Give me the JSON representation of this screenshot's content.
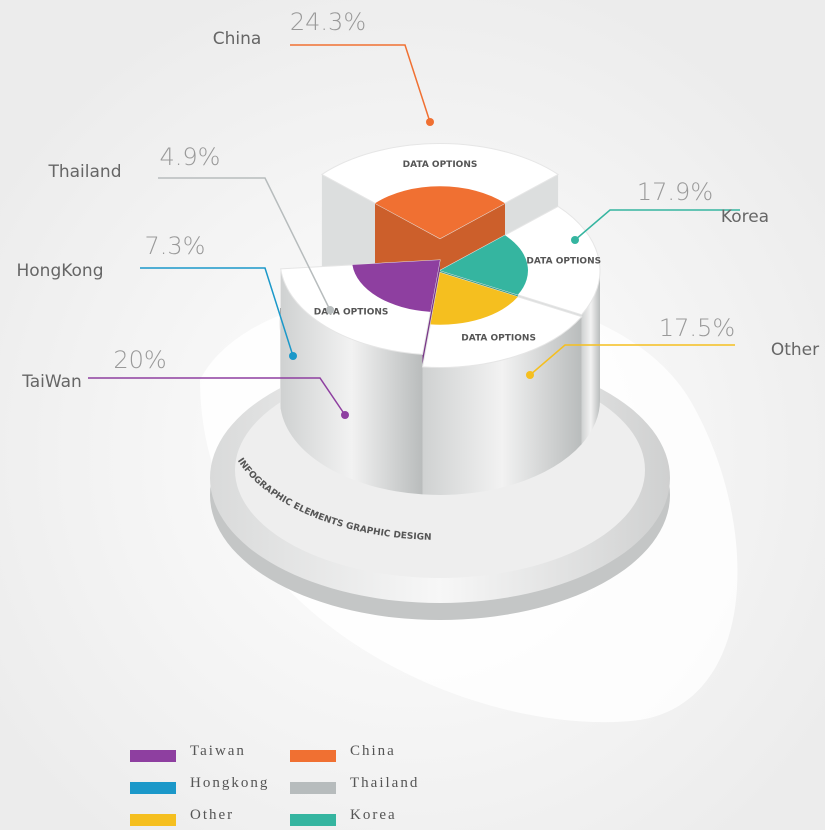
{
  "chart_data": {
    "type": "pie",
    "categories": [
      "China",
      "Korea",
      "Other",
      "TaiWan",
      "HongKong",
      "Thailand"
    ],
    "values": [
      24.3,
      17.9,
      17.5,
      20,
      7.3,
      4.9
    ],
    "value_labels": [
      "24.3%",
      "17.9%",
      "17.5%",
      "20%",
      "7.3%",
      "4.9%"
    ],
    "colors": [
      "#f07032",
      "#35b5a0",
      "#f5bf1f",
      "#8e3fa0",
      "#1b98c9",
      "#b7bcbd"
    ],
    "slice_text": "DATA OPTIONS",
    "ring_text": "INFOGRAPHIC ELEMENTS GRAPHIC DESIGN",
    "legend": [
      {
        "name": "Taiwan",
        "color": "#8e3fa0"
      },
      {
        "name": "Hongkong",
        "color": "#1b98c9"
      },
      {
        "name": "Other",
        "color": "#f5bf1f"
      },
      {
        "name": "China",
        "color": "#f07032"
      },
      {
        "name": "Thailand",
        "color": "#b7bcbd"
      },
      {
        "name": "Korea",
        "color": "#35b5a0"
      }
    ]
  }
}
